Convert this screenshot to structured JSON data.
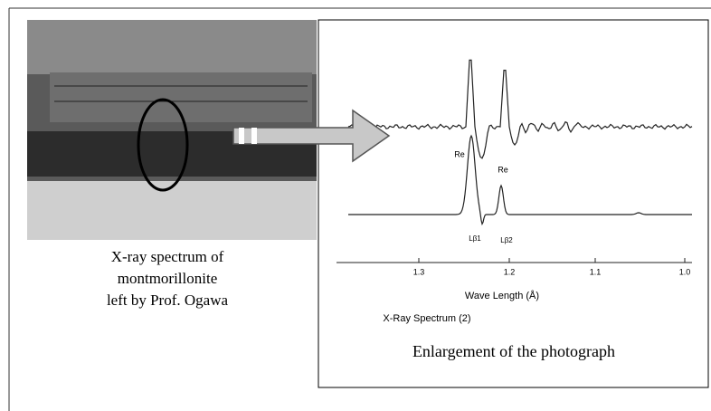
{
  "photo": {
    "caption": [
      "X-ray spectrum of",
      "montmorillonite",
      "left by Prof. Ogawa"
    ]
  },
  "figure": {
    "caption": "Enlargement of the photograph",
    "peak_labels": [
      "Re",
      "Re"
    ],
    "line_labels": [
      "Lβ1",
      "Lβ2"
    ],
    "axis_ticks": [
      "1.3",
      "1.2",
      "1.1",
      "1.0"
    ],
    "axis_label": "Wave Length (Å)",
    "title": "X-Ray Spectrum (2)"
  }
}
